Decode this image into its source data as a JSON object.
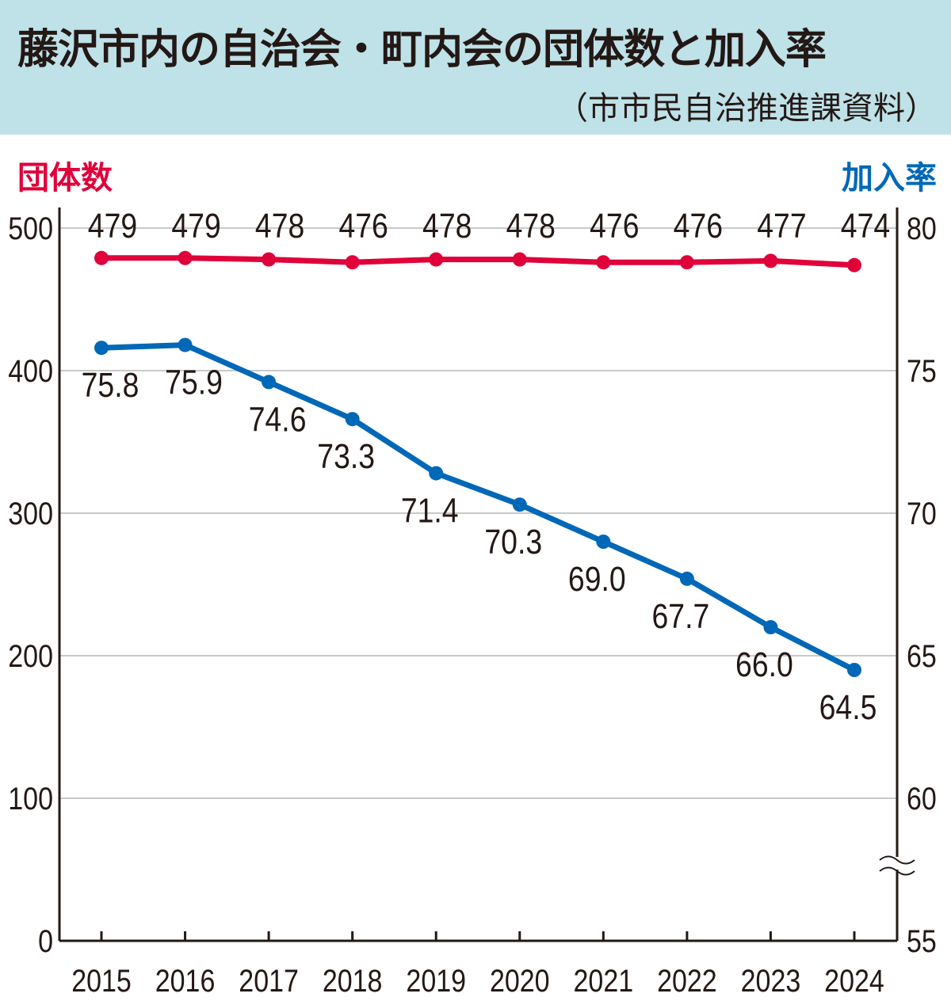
{
  "header": {
    "title": "藤沢市内の自治会・町内会の団体数と加入率",
    "subtitle": "（市市民自治推進課資料）"
  },
  "chart_data": {
    "type": "line",
    "title": "藤沢市内の自治会・町内会の団体数と加入率",
    "source": "（市市民自治推進課資料）",
    "x": [
      "2015",
      "2016",
      "2017",
      "2018",
      "2019",
      "2020",
      "2021",
      "2022",
      "2023",
      "2024"
    ],
    "left_axis": {
      "label": "団体数",
      "range": [
        0,
        500
      ],
      "ticks": [
        "0",
        "100",
        "200",
        "300",
        "400",
        "500"
      ]
    },
    "right_axis": {
      "label": "加入率",
      "range": [
        55,
        80
      ],
      "ticks": [
        "55",
        "60",
        "65",
        "70",
        "75",
        "80"
      ],
      "axis_break": true
    },
    "grid": true,
    "series": [
      {
        "name": "団体数",
        "axis": "left",
        "color": "#e0003a",
        "values": [
          479,
          479,
          478,
          476,
          478,
          478,
          476,
          476,
          477,
          474
        ],
        "labels": [
          "479",
          "479",
          "478",
          "476",
          "478",
          "478",
          "476",
          "476",
          "477",
          "474"
        ]
      },
      {
        "name": "加入率",
        "axis": "right",
        "color": "#0068b7",
        "values": [
          75.8,
          75.9,
          74.6,
          73.3,
          71.4,
          70.3,
          69.0,
          67.7,
          66.0,
          64.5
        ],
        "labels": [
          "75.8",
          "75.9",
          "74.6",
          "73.3",
          "71.4",
          "70.3",
          "69.0",
          "67.7",
          "66.0",
          "64.5"
        ]
      }
    ]
  }
}
